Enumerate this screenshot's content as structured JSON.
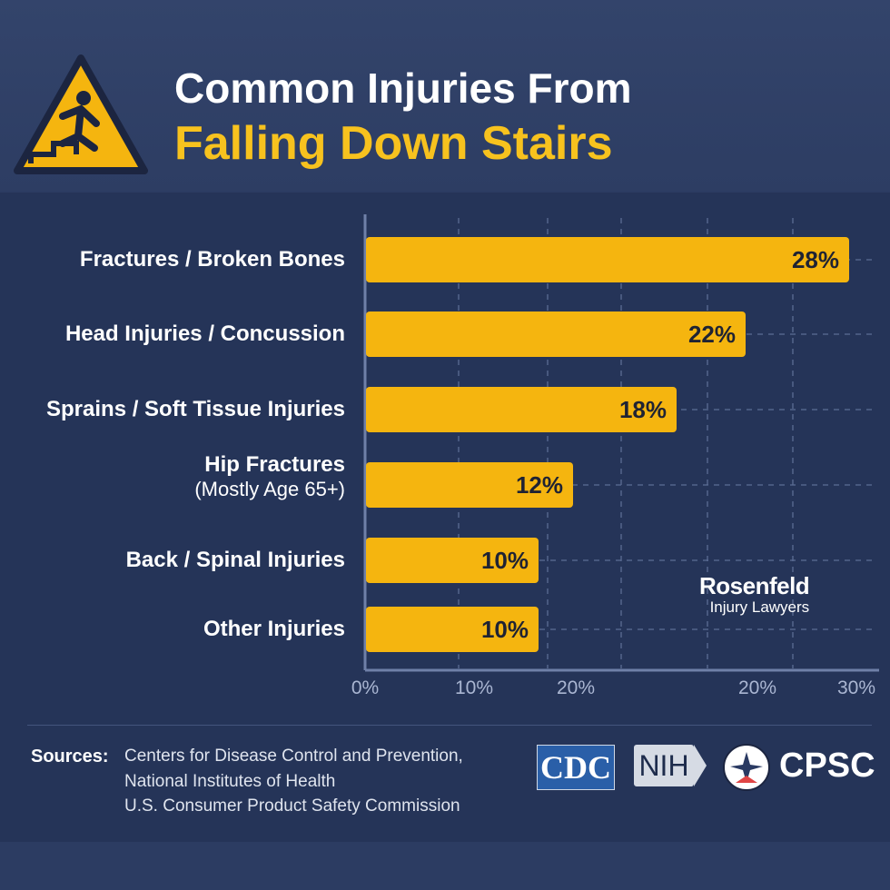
{
  "header": {
    "title_line1": "Common Injuries From",
    "title_line2": "Falling Down Stairs",
    "icon": "warning-falling-person-icon"
  },
  "chart_data": {
    "type": "bar",
    "orientation": "horizontal",
    "categories": [
      "Fractures / Broken Bones",
      "Head Injuries / Concussion",
      "Sprains / Soft Tissue Injuries",
      "Hip Fractures",
      "Back / Spinal Injuries",
      "Other Injuries"
    ],
    "category_subtitles": [
      "",
      "",
      "",
      "(Mostly Age 65+)",
      "",
      ""
    ],
    "values": [
      28,
      22,
      18,
      12,
      10,
      10
    ],
    "data_labels": [
      "28%",
      "22%",
      "18%",
      "12%",
      "10%",
      "10%"
    ],
    "x_tick_labels": [
      "0%",
      "10%",
      "20%",
      "20%",
      "30%"
    ],
    "xlim": [
      0,
      30
    ],
    "grid": true,
    "bar_color": "#f5b50f"
  },
  "brand": {
    "name": "Rosenfeld",
    "tagline": "Injury Lawyers"
  },
  "sources": {
    "label": "Sources:",
    "items": [
      "Centers for Disease Control and Prevention,",
      "National Institutes of Health",
      "U.S. Consumer Product Safety Commission"
    ],
    "logos": [
      "CDC",
      "NIH",
      "CPSC"
    ]
  }
}
